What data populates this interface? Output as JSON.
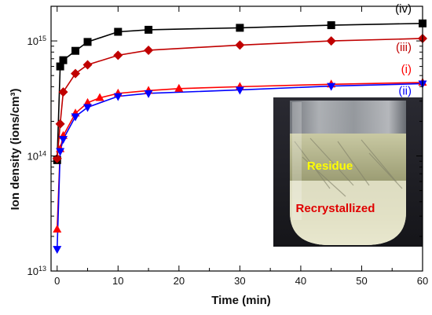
{
  "chart_data": {
    "type": "line",
    "xlabel": "Time (min)",
    "ylabel": "Ion density (ions/cm³)",
    "xlim": [
      -1,
      60
    ],
    "ylim": [
      10000000000000.0,
      2000000000000000.0
    ],
    "yscale": "log",
    "x_ticks": [
      0,
      10,
      20,
      30,
      40,
      50,
      60
    ],
    "y_ticks": [
      {
        "value": 10000000000000.0,
        "base": "10",
        "exp": "13"
      },
      {
        "value": 100000000000000.0,
        "base": "10",
        "exp": "14"
      },
      {
        "value": 1000000000000000.0,
        "base": "10",
        "exp": "15"
      }
    ],
    "grid": false,
    "series": [
      {
        "name": "(iv)",
        "color": "#000000",
        "marker": "square",
        "x": [
          0,
          0.5,
          1,
          3,
          5,
          10,
          15,
          30,
          45,
          60
        ],
        "y": [
          92000000000000.0,
          600000000000000.0,
          680000000000000.0,
          820000000000000.0,
          980000000000000.0,
          1200000000000000.0,
          1250000000000000.0,
          1300000000000000.0,
          1370000000000000.0,
          1420000000000000.0
        ]
      },
      {
        "name": "(iii)",
        "color": "#c00000",
        "marker": "diamond",
        "x": [
          0,
          0.5,
          1,
          3,
          5,
          10,
          15,
          30,
          45,
          60
        ],
        "y": [
          95000000000000.0,
          190000000000000.0,
          360000000000000.0,
          520000000000000.0,
          620000000000000.0,
          750000000000000.0,
          830000000000000.0,
          920000000000000.0,
          1000000000000000.0,
          1050000000000000.0
        ]
      },
      {
        "name": "(i)",
        "color": "#ff0000",
        "marker": "triangle-up",
        "x": [
          0,
          0.5,
          1,
          3,
          5,
          7,
          10,
          15,
          20,
          30,
          45,
          60
        ],
        "y": [
          23000000000000.0,
          115000000000000.0,
          150000000000000.0,
          235000000000000.0,
          290000000000000.0,
          320000000000000.0,
          350000000000000.0,
          370000000000000.0,
          385000000000000.0,
          400000000000000.0,
          420000000000000.0,
          435000000000000.0
        ]
      },
      {
        "name": "(ii)",
        "color": "#0000ff",
        "marker": "triangle-down",
        "x": [
          0,
          0.5,
          1,
          3,
          5,
          10,
          15,
          30,
          45,
          60
        ],
        "y": [
          15500000000000.0,
          110000000000000.0,
          140000000000000.0,
          220000000000000.0,
          265000000000000.0,
          330000000000000.0,
          350000000000000.0,
          375000000000000.0,
          405000000000000.0,
          425000000000000.0
        ]
      }
    ],
    "inset": {
      "label_top": "Residue",
      "label_bottom": "Recrystallized",
      "label_top_color": "#ffff00",
      "label_bottom_color": "#e00000"
    }
  }
}
